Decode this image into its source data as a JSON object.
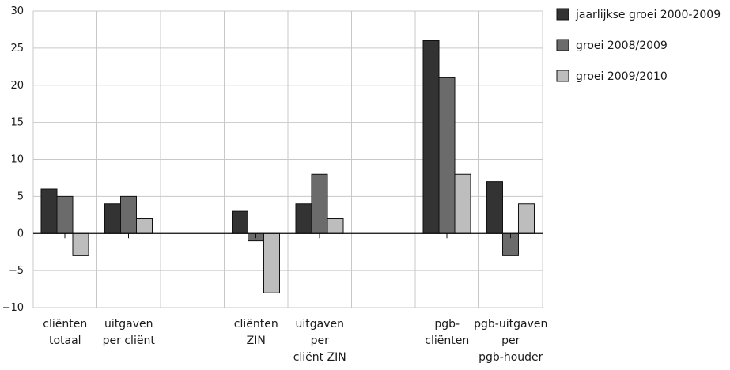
{
  "chart_data": {
    "type": "bar",
    "categories": [
      [
        "cliënten",
        "totaal"
      ],
      [
        "uitgaven",
        "per cliënt"
      ],
      [
        "",
        ""
      ],
      [
        "cliënten",
        "ZIN"
      ],
      [
        "uitgaven",
        "per",
        "cliënt ZIN"
      ],
      [
        "",
        ""
      ],
      [
        "pgb-",
        "cliënten"
      ],
      [
        "pgb-uitgaven",
        "per",
        "pgb-houder"
      ]
    ],
    "series": [
      {
        "name": "jaarlijkse groei 2000-2009",
        "color": "#333333",
        "values": [
          6,
          4,
          null,
          3,
          4,
          null,
          26,
          7
        ]
      },
      {
        "name": "groei 2008/2009",
        "color": "#6b6b6b",
        "values": [
          5,
          5,
          null,
          -1,
          8,
          null,
          21,
          -3
        ]
      },
      {
        "name": "groei 2009/2010",
        "color": "#bdbdbd",
        "values": [
          -3,
          2,
          null,
          -8,
          2,
          null,
          8,
          4
        ]
      }
    ],
    "ylim": [
      -10,
      30
    ],
    "yticks": [
      30,
      25,
      20,
      15,
      10,
      5,
      0,
      -5,
      -10
    ],
    "grid": true,
    "legend": "right",
    "title": "",
    "xlabel": "",
    "ylabel": ""
  }
}
